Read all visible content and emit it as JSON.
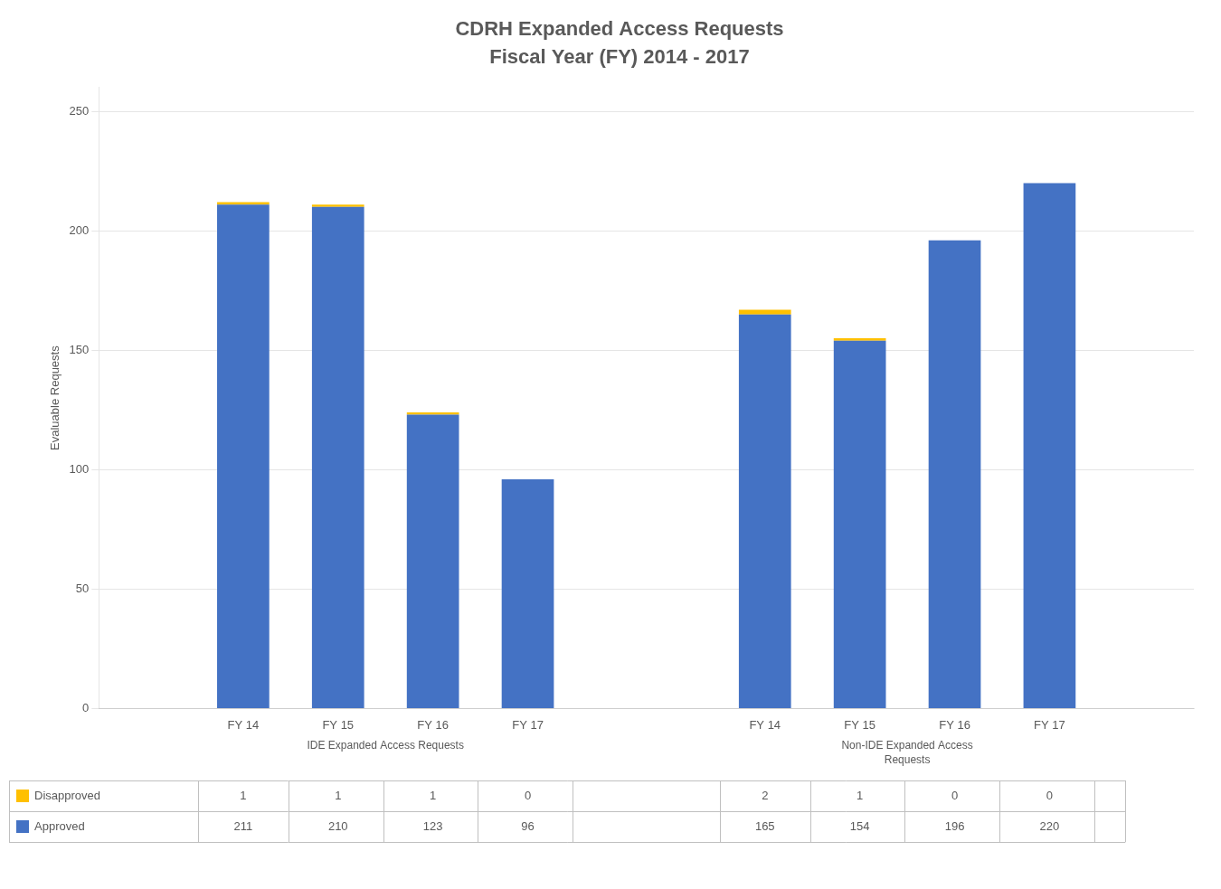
{
  "chart_data": {
    "type": "bar",
    "title": "CDRH Expanded Access Requests",
    "subtitle": "Fiscal Year (FY) 2014 - 2017",
    "ylabel": "Evaluable Requests",
    "categories": [
      "FY 14",
      "FY 15",
      "FY 16",
      "FY 17",
      "FY 14",
      "FY 15",
      "FY 16",
      "FY 17"
    ],
    "series": [
      {
        "name": "Approved",
        "color": "#4472C4",
        "values": [
          211,
          210,
          123,
          96,
          165,
          154,
          196,
          220
        ]
      },
      {
        "name": "Disapproved",
        "color": "#FFC000",
        "values": [
          1,
          1,
          1,
          0,
          2,
          1,
          0,
          0
        ]
      }
    ],
    "stacked": true,
    "ylim": [
      0,
      260
    ],
    "yticks": [
      0,
      50,
      100,
      150,
      200,
      250
    ],
    "grid": true,
    "legend": "bottom",
    "annotations": [
      "IDE Expanded Access Requests",
      "Non-IDE Expanded Access\nRequests"
    ]
  }
}
